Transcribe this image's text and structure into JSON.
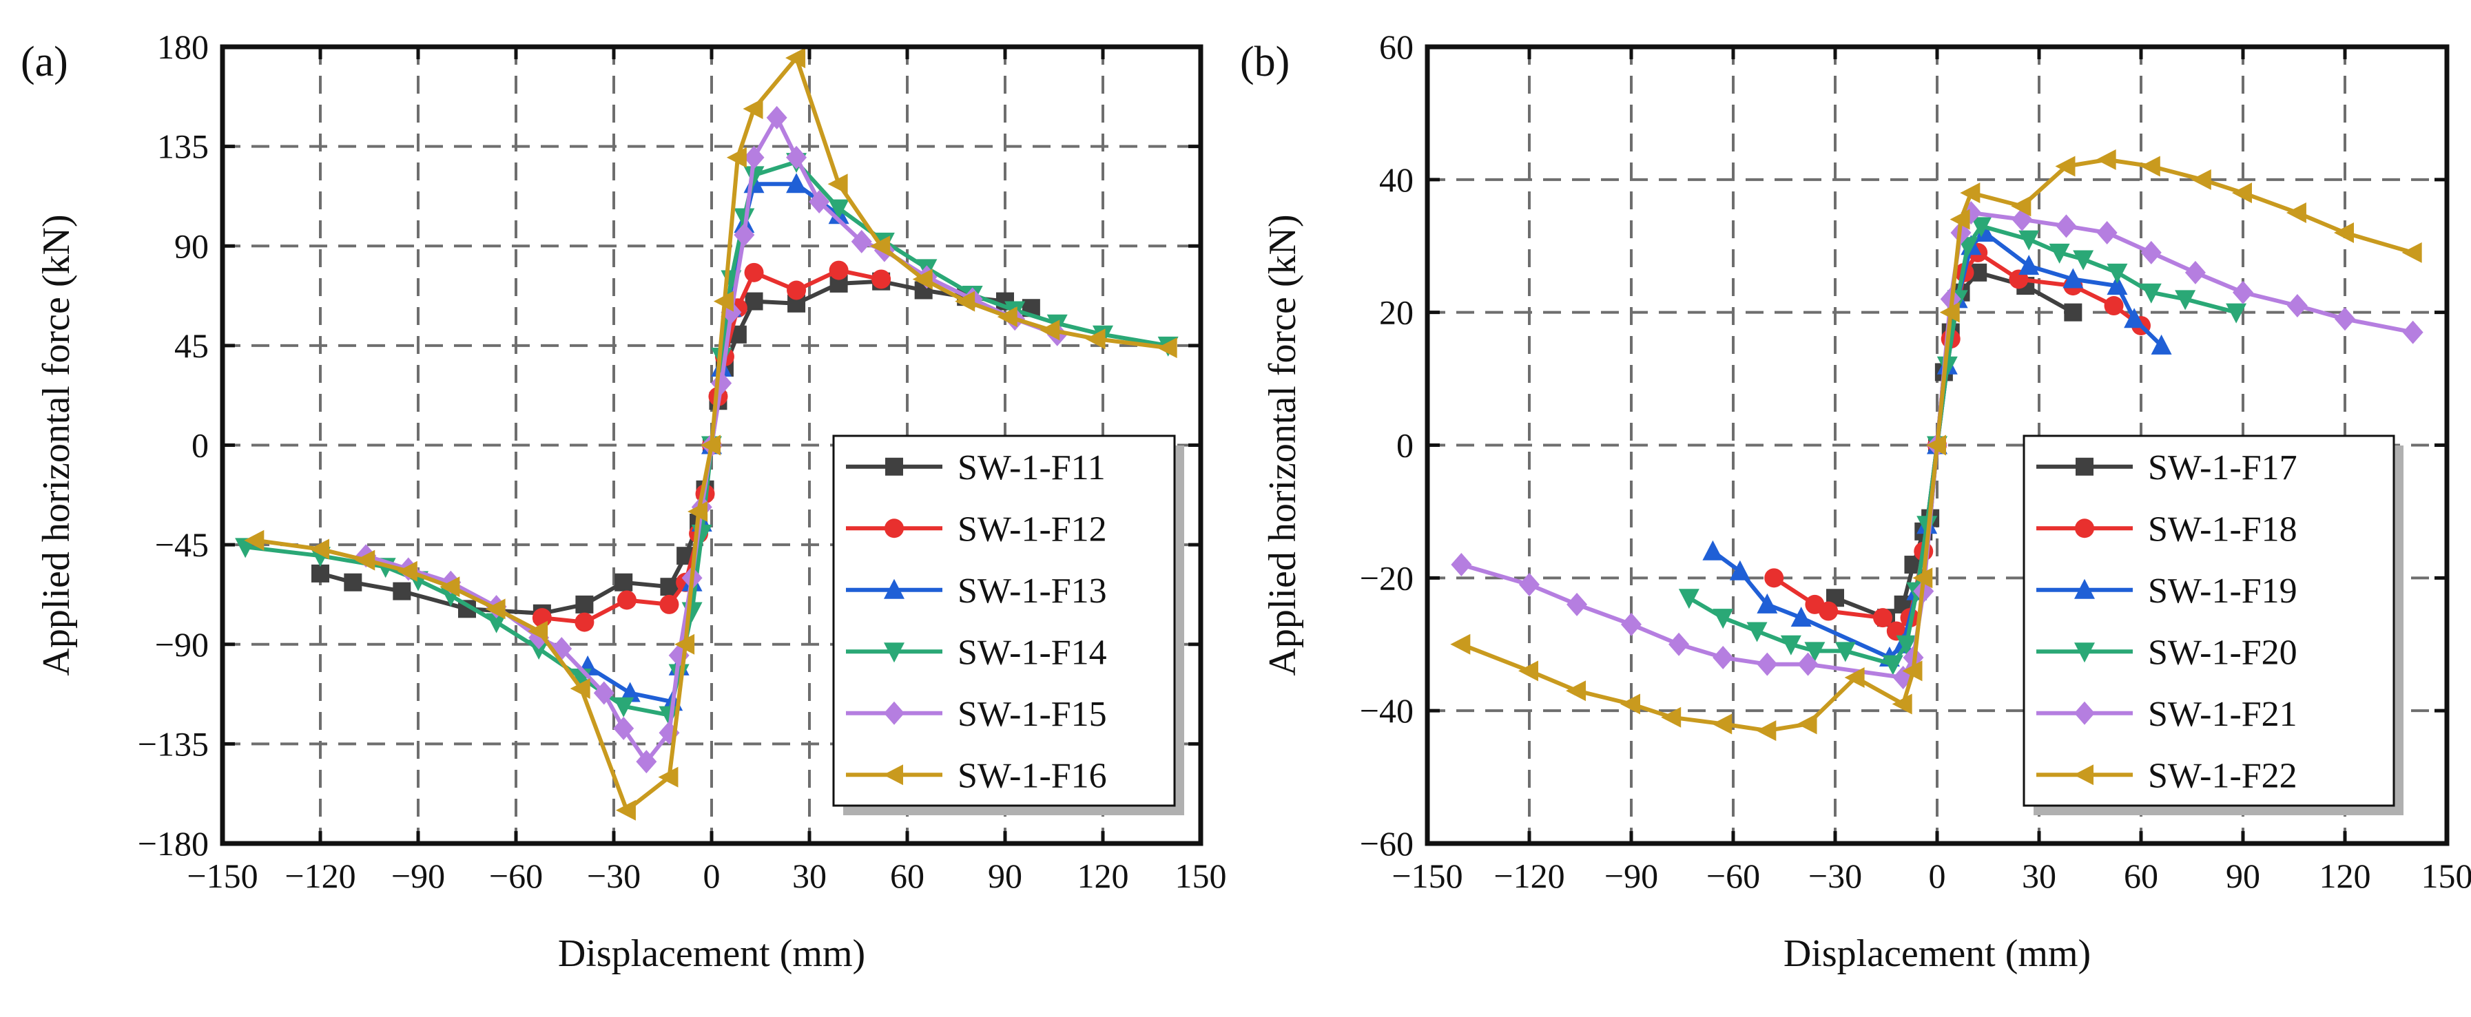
{
  "chart_data": [
    {
      "type": "line",
      "panel_label": "(a)",
      "xlabel": "Displacement (mm)",
      "ylabel": "Applied horizontal force (kN)",
      "xlim": [
        -150,
        150
      ],
      "ylim": [
        -180,
        180
      ],
      "xticks": [
        -150,
        -120,
        -90,
        -60,
        -30,
        0,
        30,
        60,
        90,
        120,
        150
      ],
      "yticks": [
        -180,
        -135,
        -90,
        -45,
        0,
        45,
        90,
        135,
        180
      ],
      "xtick_labels": [
        "−150",
        "−120",
        "−90",
        "−60",
        "−30",
        "0",
        "30",
        "60",
        "90",
        "120",
        "150"
      ],
      "ytick_labels": [
        "−180",
        "−135",
        "−90",
        "−45",
        "0",
        "45",
        "90",
        "135",
        "180"
      ],
      "grid": true,
      "legend_position": "bottom-right",
      "series": [
        {
          "name": "SW-1-F11",
          "color": "#404040",
          "marker": "square",
          "x": [
            -120,
            -110,
            -95,
            -75,
            -52,
            -39,
            -27,
            -13,
            -8,
            -4,
            -2,
            0,
            2,
            4,
            8,
            13,
            26,
            39,
            52,
            65,
            78,
            90,
            98
          ],
          "y": [
            -58,
            -62,
            -66,
            -74,
            -76,
            -72,
            -62,
            -64,
            -50,
            -35,
            -20,
            0,
            20,
            35,
            50,
            65,
            64,
            73,
            74,
            70,
            67,
            65,
            62
          ]
        },
        {
          "name": "SW-1-F12",
          "color": "#e8302e",
          "marker": "circle",
          "x": [
            -52,
            -39,
            -26,
            -13,
            -8,
            -4,
            -2,
            0,
            2,
            4,
            8,
            13,
            26,
            39,
            52
          ],
          "y": [
            -78,
            -80,
            -70,
            -72,
            -62,
            -40,
            -22,
            0,
            22,
            40,
            62,
            78,
            70,
            79,
            75
          ]
        },
        {
          "name": "SW-1-F13",
          "color": "#1f5fd6",
          "marker": "triangle-up",
          "x": [
            -38,
            -25,
            -12,
            -10,
            -6,
            -3,
            0,
            3,
            6,
            10,
            13,
            26,
            39
          ],
          "y": [
            -100,
            -112,
            -116,
            -100,
            -62,
            -35,
            0,
            35,
            62,
            100,
            118,
            118,
            104
          ]
        },
        {
          "name": "SW-1-F14",
          "color": "#2aa876",
          "marker": "triangle-down",
          "x": [
            -143,
            -120,
            -100,
            -90,
            -80,
            -66,
            -53,
            -40,
            -27,
            -13,
            -10,
            -6,
            -3,
            0,
            3,
            6,
            10,
            13,
            26,
            39,
            53,
            66,
            80,
            93,
            106,
            120,
            140
          ],
          "y": [
            -46,
            -50,
            -55,
            -61,
            -68,
            -80,
            -92,
            -105,
            -118,
            -122,
            -103,
            -75,
            -40,
            0,
            40,
            75,
            103,
            122,
            128,
            107,
            92,
            80,
            68,
            61,
            55,
            50,
            45
          ]
        },
        {
          "name": "SW-1-F15",
          "color": "#b57ee0",
          "marker": "diamond",
          "x": [
            -106,
            -93,
            -80,
            -66,
            -53,
            -46,
            -33,
            -27,
            -20,
            -13,
            -10,
            -6,
            -3,
            0,
            3,
            6,
            10,
            13,
            20,
            26,
            33,
            46,
            53,
            66,
            80,
            93,
            106
          ],
          "y": [
            -50,
            -56,
            -62,
            -73,
            -87,
            -92,
            -112,
            -128,
            -143,
            -130,
            -95,
            -60,
            -28,
            0,
            28,
            60,
            95,
            130,
            148,
            130,
            110,
            92,
            88,
            76,
            66,
            57,
            50
          ]
        },
        {
          "name": "SW-1-F16",
          "color": "#c99a1e",
          "marker": "triangle-left",
          "x": [
            -140,
            -120,
            -106,
            -93,
            -80,
            -66,
            -53,
            -40,
            -26,
            -13,
            -8,
            -4,
            0,
            4,
            8,
            13,
            26,
            39,
            52,
            65,
            78,
            91,
            104,
            118,
            140
          ],
          "y": [
            -43,
            -47,
            -52,
            -57,
            -64,
            -74,
            -84,
            -110,
            -165,
            -150,
            -90,
            -30,
            0,
            65,
            130,
            152,
            175,
            118,
            90,
            75,
            65,
            58,
            52,
            48,
            44
          ]
        }
      ]
    },
    {
      "type": "line",
      "panel_label": "(b)",
      "xlabel": "Displacement (mm)",
      "ylabel": "Applied horizontal force (kN)",
      "xlim": [
        -150,
        150
      ],
      "ylim": [
        -60,
        60
      ],
      "xticks": [
        -150,
        -120,
        -90,
        -60,
        -30,
        0,
        30,
        60,
        90,
        120,
        150
      ],
      "yticks": [
        -60,
        -40,
        -20,
        0,
        20,
        40,
        60
      ],
      "xtick_labels": [
        "−150",
        "−120",
        "−90",
        "−60",
        "−30",
        "0",
        "30",
        "60",
        "90",
        "120",
        "150"
      ],
      "ytick_labels": [
        "−60",
        "−40",
        "−20",
        "0",
        "20",
        "40",
        "60"
      ],
      "grid": true,
      "legend_position": "bottom-right",
      "series": [
        {
          "name": "SW-1-F17",
          "color": "#404040",
          "marker": "square",
          "x": [
            -30,
            -15,
            -10,
            -7,
            -4,
            -2,
            0,
            2,
            4,
            7,
            12,
            26,
            40
          ],
          "y": [
            -23,
            -26,
            -24,
            -18,
            -13,
            -11,
            0,
            11,
            17,
            23,
            26,
            24,
            20
          ]
        },
        {
          "name": "SW-1-F18",
          "color": "#e8302e",
          "marker": "circle",
          "x": [
            -48,
            -36,
            -32,
            -16,
            -12,
            -8,
            -4,
            0,
            4,
            8,
            12,
            24,
            40,
            52,
            60
          ],
          "y": [
            -20,
            -24,
            -25,
            -26,
            -28,
            -26,
            -16,
            0,
            16,
            26,
            29,
            25,
            24,
            21,
            18
          ]
        },
        {
          "name": "SW-1-F19",
          "color": "#1f5fd6",
          "marker": "triangle-up",
          "x": [
            -66,
            -58,
            -50,
            -40,
            -14,
            -10,
            -6,
            -3,
            0,
            3,
            6,
            10,
            14,
            27,
            40,
            53,
            58,
            66
          ],
          "y": [
            -16,
            -19,
            -24,
            -26,
            -32,
            -30,
            -22,
            -12,
            0,
            12,
            22,
            30,
            32,
            27,
            25,
            24,
            19,
            15
          ]
        },
        {
          "name": "SW-1-F20",
          "color": "#2aa876",
          "marker": "triangle-down",
          "x": [
            -73,
            -63,
            -53,
            -43,
            -36,
            -27,
            -13,
            -9,
            -6,
            -3,
            0,
            3,
            6,
            9,
            13,
            27,
            36,
            43,
            53,
            63,
            73,
            88
          ],
          "y": [
            -23,
            -26,
            -28,
            -30,
            -31,
            -31,
            -33,
            -30,
            -22,
            -12,
            0,
            12,
            22,
            30,
            33,
            31,
            29,
            28,
            26,
            23,
            22,
            20
          ]
        },
        {
          "name": "SW-1-F21",
          "color": "#b57ee0",
          "marker": "diamond",
          "x": [
            -140,
            -120,
            -106,
            -90,
            -76,
            -63,
            -50,
            -38,
            -10,
            -7,
            -4,
            0,
            4,
            7,
            10,
            25,
            38,
            50,
            63,
            76,
            90,
            106,
            120,
            140
          ],
          "y": [
            -18,
            -21,
            -24,
            -27,
            -30,
            -32,
            -33,
            -33,
            -35,
            -32,
            -22,
            0,
            22,
            32,
            35,
            34,
            33,
            32,
            29,
            26,
            23,
            21,
            19,
            17
          ]
        },
        {
          "name": "SW-1-F22",
          "color": "#c99a1e",
          "marker": "triangle-left",
          "x": [
            -140,
            -120,
            -106,
            -90,
            -78,
            -63,
            -50,
            -38,
            -24,
            -10,
            -7,
            -4,
            0,
            4,
            7,
            10,
            25,
            38,
            50,
            63,
            78,
            90,
            106,
            120,
            140
          ],
          "y": [
            -30,
            -34,
            -37,
            -39,
            -41,
            -42,
            -43,
            -42,
            -35,
            -39,
            -34,
            -20,
            0,
            20,
            34,
            38,
            36,
            42,
            43,
            42,
            40,
            38,
            35,
            32,
            29
          ]
        }
      ]
    }
  ]
}
